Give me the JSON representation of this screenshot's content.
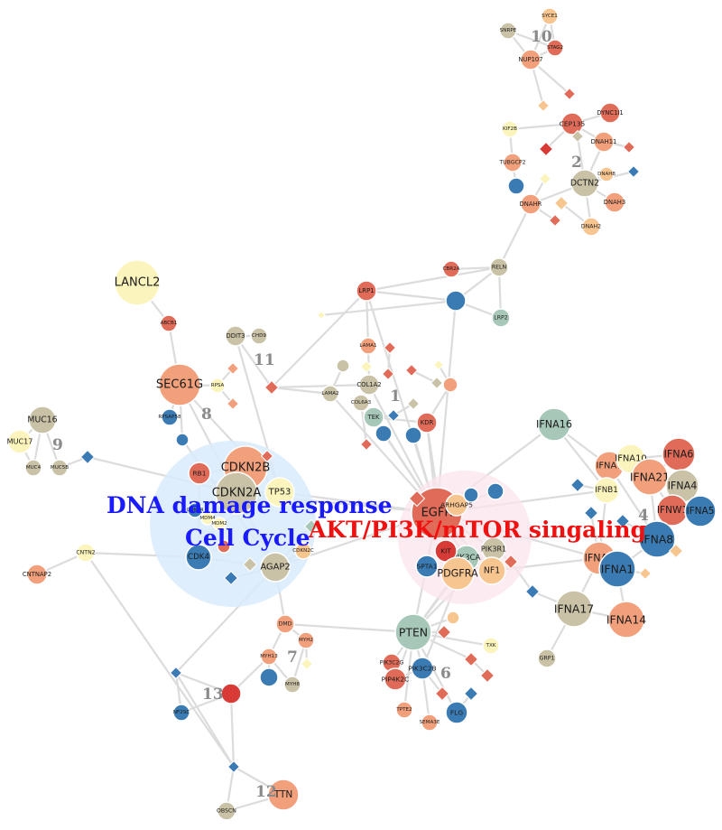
{
  "colors": {
    "red": "#e06b58",
    "orange": "#f2a07c",
    "peach": "#f7c58f",
    "yellow": "#fbf4bc",
    "beige": "#c9c2a6",
    "sage": "#a7c8b8",
    "blue": "#3b7bb3",
    "darkred": "#d83a35",
    "edge": "#dcdcdc",
    "halo_dna": "#d9ebfb",
    "halo_akt": "#fbe4ec",
    "label_dna": "#1a1aff",
    "label_akt": "#f01010"
  },
  "group_labels": {
    "dna_damage": "DNA damage response",
    "cell_cycle": "Cell Cycle",
    "akt_pathway": "AKT/PI3K/mTOR singaling"
  },
  "cluster_ids": [
    "1",
    "2",
    "4",
    "6",
    "7",
    "8",
    "9",
    "10",
    "11",
    "12",
    "13"
  ],
  "genes": {
    "EGFR": "EGFR",
    "ARHGAP5": "ARHGAP5",
    "PIK3R1": "PIK3R1",
    "PIK3CA": "PIK3CA",
    "KIT": "KIT",
    "NF1": "NF1",
    "PDGFRA": "PDGFRA",
    "SPTA1": "SPTA1",
    "CDKN2B": "CDKN2B",
    "CDKN2A": "CDKN2A",
    "TP53": "TP53",
    "RB1": "RB1",
    "MDM4": "MDM4",
    "MDM2": "MDM2",
    "CDK4": "CDK4",
    "AGAP2": "AGAP2",
    "CDKN2C": "CDKN2C",
    "CDK14": "CDK14",
    "PTEN": "PTEN",
    "PIK3C2B": "PIK3C2B",
    "PIK3C2G": "PIK3C2G",
    "PIP4K2C": "PIP4K2C",
    "TPTE2": "TPTE2",
    "SEMA3E": "SEMA3E",
    "FLG": "FLG",
    "TXK": "TXK",
    "IFNA16": "IFNA16",
    "IFNA7": "IFNA7",
    "IFNA10": "IFNA10",
    "IFNA6": "IFNA6",
    "IFNA21": "IFNA21",
    "IFNA4": "IFNA4",
    "IFNB1": "IFNB1",
    "IFNW1": "IFNW1",
    "IFNA5": "IFNA5",
    "IFNA8": "IFNA8",
    "IFNA2": "IFNA2",
    "IFNA1": "IFNA1",
    "IFNA17": "IFNA17",
    "IFNA14": "IFNA14",
    "GRP1": "GRP1",
    "LANCL2": "LANCL2",
    "ABCB1": "ABCB1",
    "SEC61G": "SEC61G",
    "DDIT3": "DDIT3",
    "CHD9": "CHD9",
    "RPSA": "RPSA",
    "RPSAP58": "RPSAP58",
    "MUC16": "MUC16",
    "MUC17": "MUC17",
    "MUC4": "MUC4",
    "MUC5B": "MUC5B",
    "CNTN2": "CNTN2",
    "CNTNAP2": "CNTNAP2",
    "LAMA1": "LAMA1",
    "COL1A2": "COL1A2",
    "COL6A3": "COL6A3",
    "TEK": "TEK",
    "KDR": "KDR",
    "LRP1": "LRP1",
    "LRP2": "LRP2",
    "RELN": "RELN",
    "CBR2A": "CBR2A",
    "LAMA2": "LAMA2",
    "SYCE1": "SYCE1",
    "SNRPE": "SNRPE",
    "STAG2": "STAG2",
    "NUP107": "NUP107",
    "CEP135": "CEP135",
    "DYNC1I1": "DYNC1I1",
    "KIF2B": "KIF2B",
    "DNAH11": "DNAH11",
    "TUBGCP2": "TUBGCP2",
    "DCTN2": "DCTN2",
    "DNAH8": "DNAH8",
    "DNAHR": "DNAHR",
    "DNAH3": "DNAH3",
    "DNAH2": "DNAH2",
    "DMD": "DMD",
    "MYH2": "MYH2",
    "MYH13": "MYH13",
    "MYH8": "MYH8",
    "TTN": "TTN",
    "OBSCN": "OBSCN",
    "NF2SC": "NF2SC"
  }
}
